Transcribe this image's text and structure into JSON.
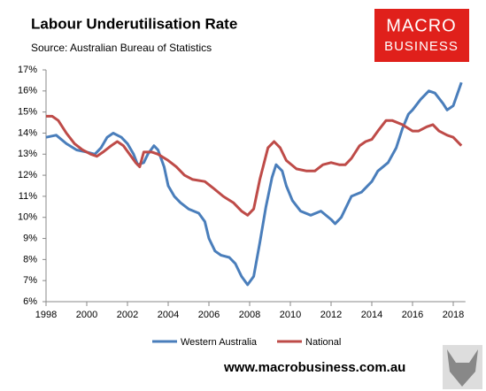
{
  "chart_data": {
    "type": "line",
    "title": "Labour Underutilisation Rate",
    "subtitle": "Source: Australian Bureau of Statistics",
    "xlim": [
      1998,
      2018.6
    ],
    "xticks": [
      1998,
      2000,
      2002,
      2004,
      2006,
      2008,
      2010,
      2012,
      2014,
      2016,
      2018
    ],
    "ylim": [
      6,
      17
    ],
    "yticks": [
      {
        "value": 6,
        "label": "6%"
      },
      {
        "value": 7,
        "label": "7%"
      },
      {
        "value": 8,
        "label": "8%"
      },
      {
        "value": 9,
        "label": "9%"
      },
      {
        "value": 10,
        "label": "10%"
      },
      {
        "value": 11,
        "label": "11%"
      },
      {
        "value": 12,
        "label": "12%"
      },
      {
        "value": 13,
        "label": "13%"
      },
      {
        "value": 14,
        "label": "14%"
      },
      {
        "value": 15,
        "label": "15%"
      },
      {
        "value": 16,
        "label": "16%"
      },
      {
        "value": 17,
        "label": "17%"
      }
    ],
    "grid": false,
    "legend": "bottom",
    "series": [
      {
        "name": "Western Australia",
        "color": "#4a7ebb",
        "x": [
          1998,
          1998.5,
          1999,
          1999.5,
          2000,
          2000.4,
          2000.7,
          2001,
          2001.3,
          2001.7,
          2002,
          2002.3,
          2002.5,
          2002.8,
          2003,
          2003.3,
          2003.5,
          2003.8,
          2004,
          2004.3,
          2004.6,
          2005,
          2005.5,
          2005.8,
          2006,
          2006.3,
          2006.6,
          2007,
          2007.3,
          2007.6,
          2007.9,
          2008.2,
          2008.5,
          2008.8,
          2009.1,
          2009.3,
          2009.6,
          2009.8,
          2010.1,
          2010.5,
          2011,
          2011.5,
          2012,
          2012.2,
          2012.5,
          2012.8,
          2013,
          2013.5,
          2014,
          2014.3,
          2014.8,
          2015.2,
          2015.5,
          2015.8,
          2016,
          2016.4,
          2016.8,
          2017.1,
          2017.5,
          2017.7,
          2018,
          2018.4
        ],
        "values": [
          13.8,
          13.9,
          13.5,
          13.2,
          13.1,
          13.0,
          13.3,
          13.8,
          14.0,
          13.8,
          13.5,
          13.0,
          12.5,
          12.6,
          13.0,
          13.4,
          13.2,
          12.4,
          11.5,
          11.0,
          10.7,
          10.4,
          10.2,
          9.8,
          9.0,
          8.4,
          8.2,
          8.1,
          7.8,
          7.2,
          6.8,
          7.2,
          8.8,
          10.5,
          11.9,
          12.5,
          12.2,
          11.5,
          10.8,
          10.3,
          10.1,
          10.3,
          9.9,
          9.7,
          10.0,
          10.6,
          11.0,
          11.2,
          11.7,
          12.2,
          12.6,
          13.3,
          14.2,
          14.9,
          15.1,
          15.6,
          16.0,
          15.9,
          15.4,
          15.1,
          15.3,
          16.4
        ]
      },
      {
        "name": "National",
        "color": "#be4b48",
        "x": [
          1998,
          1998.3,
          1998.6,
          1999,
          1999.4,
          1999.8,
          2000.2,
          2000.5,
          2000.8,
          2001.2,
          2001.5,
          2001.8,
          2002.1,
          2002.4,
          2002.6,
          2002.8,
          2003.2,
          2003.5,
          2004,
          2004.4,
          2004.8,
          2005.2,
          2005.8,
          2006.2,
          2006.7,
          2007.2,
          2007.6,
          2007.9,
          2008.2,
          2008.5,
          2008.9,
          2009.2,
          2009.5,
          2009.8,
          2010.3,
          2010.8,
          2011.2,
          2011.6,
          2012,
          2012.4,
          2012.7,
          2013,
          2013.4,
          2013.7,
          2014,
          2014.3,
          2014.7,
          2015,
          2015.5,
          2016,
          2016.3,
          2016.7,
          2017,
          2017.3,
          2017.7,
          2018,
          2018.4
        ],
        "values": [
          14.8,
          14.8,
          14.6,
          14.0,
          13.5,
          13.2,
          13.0,
          12.9,
          13.1,
          13.4,
          13.6,
          13.4,
          13.0,
          12.6,
          12.4,
          13.1,
          13.1,
          13.0,
          12.7,
          12.4,
          12.0,
          11.8,
          11.7,
          11.4,
          11.0,
          10.7,
          10.3,
          10.1,
          10.4,
          11.8,
          13.3,
          13.6,
          13.3,
          12.7,
          12.3,
          12.2,
          12.2,
          12.5,
          12.6,
          12.5,
          12.5,
          12.8,
          13.4,
          13.6,
          13.7,
          14.1,
          14.6,
          14.6,
          14.4,
          14.1,
          14.1,
          14.3,
          14.4,
          14.1,
          13.9,
          13.8,
          13.4
        ]
      }
    ]
  },
  "logo": [
    "MACRO",
    "BUSINESS"
  ],
  "footer": "www.macrobusiness.com.au"
}
